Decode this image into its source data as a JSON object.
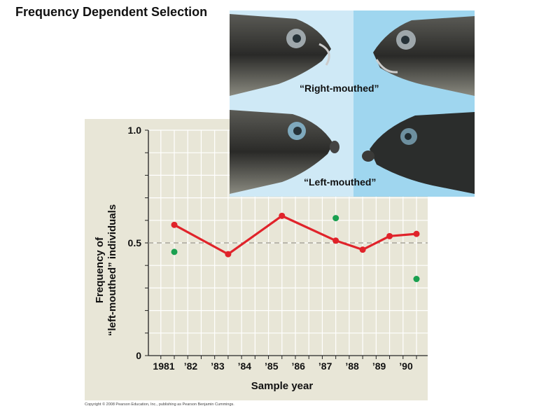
{
  "slide": {
    "title": "Frequency Dependent Selection",
    "copyright": "Copyright © 2008 Pearson Education, Inc., publishing as Pearson Benjamin Cummings."
  },
  "photo": {
    "right_label": "“Right-mouthed”",
    "left_label": "“Left-mouthed”"
  },
  "colors": {
    "panel_bg": "#e8e6d7",
    "grid": "#ffffff",
    "series_red": "#e0232a",
    "series_green": "#1aa050",
    "reference_line": "#a7a49a"
  },
  "chart_data": {
    "type": "line",
    "ylabel_line1": "Frequency of",
    "ylabel_line2": "“left-mouthed” individuals",
    "xlabel": "Sample year",
    "x_tick_labels": [
      "1981",
      "’82",
      "’83",
      "’84",
      "’85",
      "’86",
      "’87",
      "’88",
      "’89",
      "’90"
    ],
    "y_tick_labels": [
      "1.0",
      "0.5",
      "0"
    ],
    "ylim": [
      0,
      1.0
    ],
    "xlim": [
      1981,
      1990
    ],
    "reference_line_y": 0.5,
    "grid": true,
    "series": [
      {
        "type": "line",
        "color": "red",
        "points": [
          {
            "x": 1981.0,
            "y": 0.58
          },
          {
            "x": 1983.0,
            "y": 0.45
          },
          {
            "x": 1985.0,
            "y": 0.62
          },
          {
            "x": 1987.0,
            "y": 0.51
          },
          {
            "x": 1988.0,
            "y": 0.47
          },
          {
            "x": 1989.0,
            "y": 0.53
          },
          {
            "x": 1990.0,
            "y": 0.54
          }
        ]
      },
      {
        "type": "scatter",
        "color": "green",
        "points": [
          {
            "x": 1981.0,
            "y": 0.46
          },
          {
            "x": 1987.0,
            "y": 0.61
          },
          {
            "x": 1990.0,
            "y": 0.34
          }
        ]
      }
    ]
  }
}
